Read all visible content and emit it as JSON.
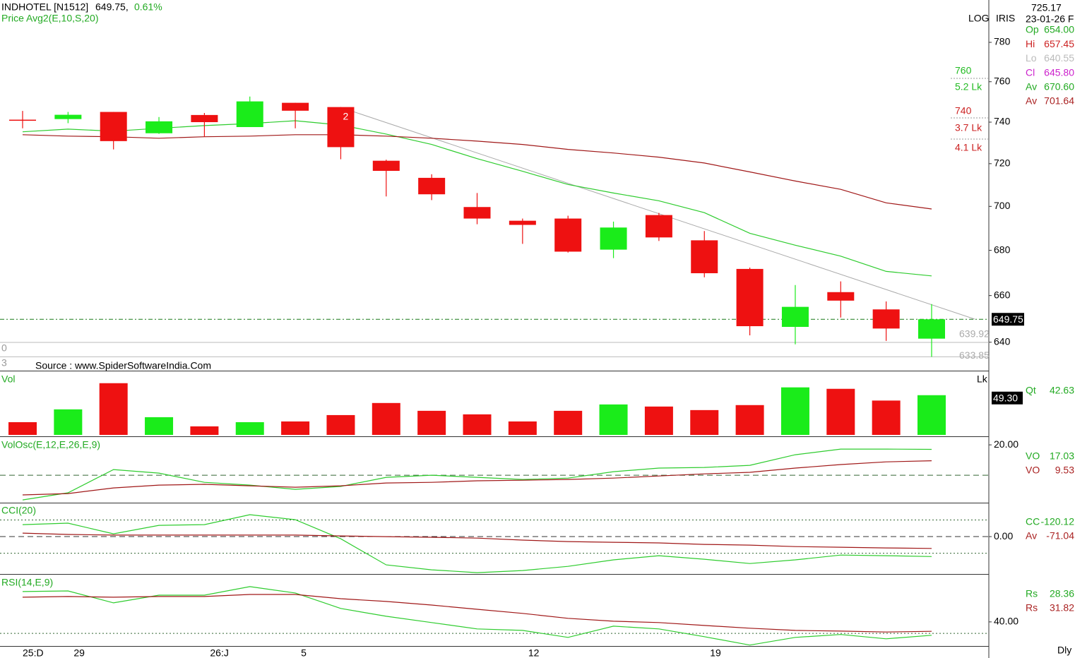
{
  "header": {
    "symbol": "INDHOTEL [N1512]",
    "last": "649.75,",
    "change": "0.61%",
    "subtitle": "Price  Avg2(E,10,S,20)",
    "scale_mode": "LOG",
    "mode": "IRIS",
    "crosshair_value": "725.17",
    "crosshair_date": "23-01-26 F",
    "source": "Source : www.SpiderSoftwareIndia.Com",
    "left_labels": [
      "0",
      "3"
    ],
    "period": "Dly",
    "info": [
      {
        "name": "Op",
        "value": "654.00",
        "color": "#22aa22"
      },
      {
        "name": "Hi",
        "value": "657.45",
        "color": "#cc2222"
      },
      {
        "name": "Lo",
        "value": "640.55",
        "color": "#bbbbbb"
      },
      {
        "name": "Cl",
        "value": "645.80",
        "color": "#cc22cc"
      },
      {
        "name": "Av",
        "value": "670.60",
        "color": "#22aa22"
      },
      {
        "name": "Av",
        "value": "701.64",
        "color": "#aa2222"
      }
    ],
    "side_notes": [
      {
        "text": "760",
        "color": "#22bb22"
      },
      {
        "text": "5.2 Lk",
        "color": "#22bb22"
      },
      {
        "text": "740",
        "color": "#cc2222"
      },
      {
        "text": "3.7 Lk",
        "color": "#cc2222"
      },
      {
        "text": "4.1 Lk",
        "color": "#cc2222"
      }
    ]
  },
  "chart_data": [
    {
      "type": "candlestick",
      "log": true,
      "ylim": [
        628.1,
        802.1
      ],
      "yticks": [
        640,
        660,
        680,
        700,
        720,
        740,
        760,
        780
      ],
      "up_color": "#1aec1a",
      "down_color": "#ee1111",
      "annotation": "2",
      "open": [
        741.2,
        741.5,
        745,
        734.6,
        743.5,
        737.6,
        749.5,
        747.4,
        721.4,
        713.3,
        699.7,
        693.4,
        694.4,
        680.3,
        696,
        684.5,
        671.7,
        646.5,
        661.5,
        654,
        641.5
      ],
      "high": [
        745.5,
        745,
        745,
        742.5,
        744.5,
        752.6,
        749.5,
        747.4,
        721.9,
        715,
        706.2,
        694.4,
        695.7,
        693,
        697,
        688.7,
        672.3,
        664.6,
        666.2,
        657.45,
        656.3
      ],
      "low": [
        737,
        739.5,
        726.8,
        734.3,
        732.9,
        737.6,
        737,
        722.1,
        704.6,
        702.9,
        691.8,
        682.9,
        679,
        676.5,
        684.2,
        668,
        642.9,
        639.1,
        650.5,
        640.55,
        633.85
      ],
      "close": [
        740.9,
        743.6,
        730.8,
        740.4,
        740,
        750.2,
        745.6,
        727.9,
        716.6,
        705.6,
        694.4,
        691.5,
        679.4,
        690.3,
        685.8,
        669.8,
        646.8,
        655.1,
        657.8,
        645.8,
        649.75
      ],
      "series": [
        {
          "color": "#2ecc2e",
          "values": [
            735.3,
            736.6,
            735.6,
            737,
            738.3,
            739.3,
            740.7,
            738.6,
            734.2,
            729.2,
            722.4,
            716.4,
            710.2,
            706.2,
            702.6,
            697.1,
            687.7,
            682.3,
            677.4,
            670.6,
            668.6
          ]
        },
        {
          "color": "#a01818",
          "values": [
            733.9,
            733.2,
            732.9,
            732.2,
            732.9,
            733.2,
            733.9,
            733.9,
            733.2,
            732.2,
            730.8,
            729.2,
            726.8,
            725.1,
            723.1,
            720.3,
            716.1,
            711.8,
            707.9,
            701.64,
            698.8
          ]
        }
      ],
      "price_tag": {
        "value": 649.75,
        "label": "649.75"
      },
      "levels": [
        {
          "value": 639.92,
          "label": "639.92"
        },
        {
          "value": 633.85,
          "label": "633.85"
        }
      ]
    },
    {
      "type": "volume",
      "title": "Vol",
      "unit": "Lk",
      "ylim": [
        0,
        78
      ],
      "values": [
        15.8,
        31.7,
        64.2,
        22.0,
        10.6,
        15.8,
        16.7,
        24.6,
        39.6,
        29.9,
        25.5,
        16.7,
        29.9,
        37.8,
        35.2,
        30.8,
        37.0,
        59.0,
        57.2,
        42.63,
        49.3
      ],
      "value_tag": {
        "value": 49.3,
        "label": "49.30"
      },
      "readout": [
        {
          "name": "Qt",
          "value": "42.63",
          "color": "#22aa22"
        }
      ]
    },
    {
      "type": "line",
      "title": "VolOsc(E,12,E,26,E,9)",
      "ylim": [
        -18.1,
        24.7
      ],
      "yticks": [
        {
          "value": 20,
          "label": "20.00"
        }
      ],
      "hlines": [
        {
          "value": 0,
          "style": "dashed",
          "color": "#336633"
        }
      ],
      "series": [
        {
          "color": "#2ecc2e",
          "values": [
            -16.3,
            -11.6,
            3.7,
            1.4,
            -4.7,
            -6.5,
            -9.3,
            -7.4,
            -1.4,
            0,
            -1.4,
            -2.8,
            -1.9,
            2.3,
            4.7,
            5.1,
            6.5,
            13.5,
            17.2,
            17.2,
            17.03
          ]
        },
        {
          "color": "#a01818",
          "values": [
            -13,
            -12.1,
            -8.4,
            -6.5,
            -6,
            -7,
            -7.9,
            -7,
            -5.1,
            -4.7,
            -3.7,
            -3.3,
            -2.8,
            -1.9,
            -0.5,
            0.9,
            1.9,
            4.7,
            7,
            8.8,
            9.53
          ]
        }
      ],
      "readout": [
        {
          "name": "VO",
          "value": "17.03",
          "color": "#22aa22"
        },
        {
          "name": "VO",
          "value": "9.53",
          "color": "#aa2222"
        }
      ]
    },
    {
      "type": "line",
      "title": "CCI(20)",
      "ylim": [
        -225,
        200
      ],
      "yticks": [
        {
          "value": 0,
          "label": "0.00"
        }
      ],
      "hlines": [
        {
          "value": 0,
          "style": "dashed",
          "color": "#333333"
        },
        {
          "value": 100,
          "style": "dotted",
          "color": "#336633"
        },
        {
          "value": -100,
          "style": "dotted",
          "color": "#336633"
        }
      ],
      "series": [
        {
          "color": "#2ecc2e",
          "values": [
            72,
            81,
            17,
            68,
            72,
            132,
            102,
            -13,
            -170,
            -200,
            -217,
            -204,
            -179,
            -140,
            -115,
            -136,
            -162,
            -140,
            -111,
            -115,
            -120.12
          ]
        },
        {
          "color": "#a01818",
          "values": [
            21,
            13,
            9,
            9,
            9,
            9,
            9,
            4,
            0,
            -4,
            -9,
            -21,
            -30,
            -34,
            -38,
            -47,
            -51,
            -60,
            -64,
            -68,
            -71.04
          ]
        }
      ],
      "readout": [
        {
          "name": "CC",
          "value": "-120.12",
          "color": "#22aa22"
        },
        {
          "name": "Av",
          "value": "-71.04",
          "color": "#aa2222"
        }
      ]
    },
    {
      "type": "line",
      "title": "RSI(14,E,9)",
      "ylim": [
        19,
        80.5
      ],
      "yticks": [
        {
          "value": 40,
          "label": "40.00"
        }
      ],
      "hlines": [
        {
          "value": 30,
          "style": "dotted",
          "color": "#336633"
        }
      ],
      "series": [
        {
          "color": "#2ecc2e",
          "values": [
            66.4,
            67,
            56.6,
            63.3,
            63.3,
            70.7,
            65.2,
            51.7,
            44.9,
            39.4,
            33.9,
            32.6,
            26.5,
            36.3,
            33.9,
            27.1,
            19.8,
            26.5,
            29,
            25.3,
            28.36
          ]
        },
        {
          "color": "#a01818",
          "values": [
            61.5,
            62.1,
            61.5,
            62.1,
            62.1,
            63.9,
            63.9,
            60.2,
            57.8,
            54.7,
            51,
            47.4,
            43.1,
            40.6,
            39.4,
            36.9,
            34.5,
            32.6,
            32,
            31.2,
            31.82
          ]
        }
      ],
      "readout": [
        {
          "name": "Rs",
          "value": "28.36",
          "color": "#22aa22"
        },
        {
          "name": "Rs",
          "value": "31.82",
          "color": "#aa2222"
        }
      ],
      "categories": [
        "25:D",
        "29",
        null,
        null,
        "26:J",
        null,
        "5",
        null,
        null,
        null,
        null,
        "12",
        null,
        null,
        null,
        "19",
        null,
        null,
        null,
        null,
        null
      ]
    }
  ]
}
